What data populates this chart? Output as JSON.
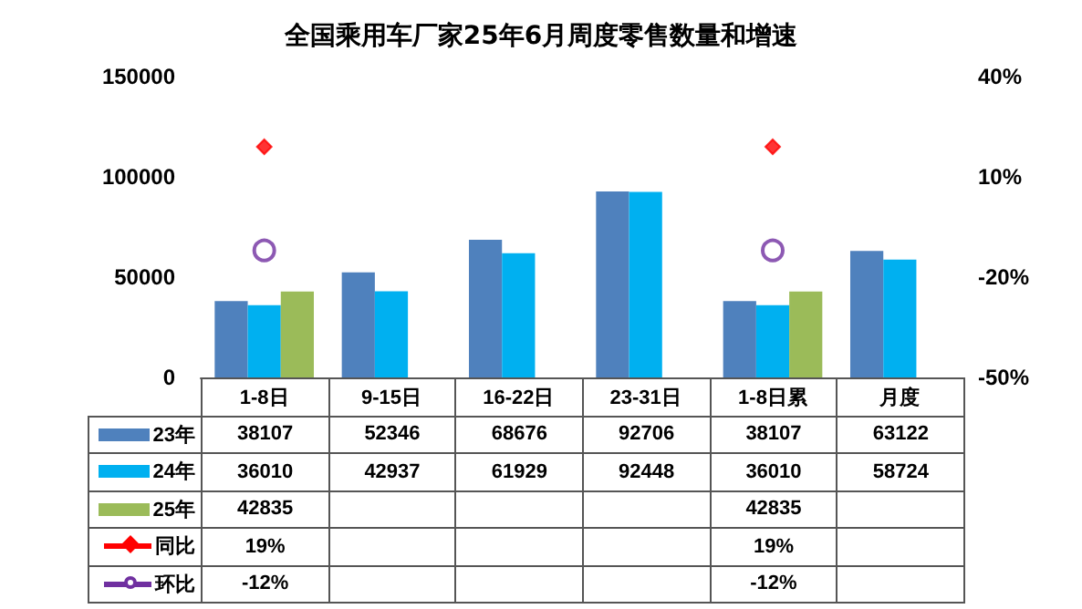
{
  "chart_data": {
    "type": "bar",
    "title": "全国乘用车厂家25年6月周度零售数量和增速",
    "categories": [
      "1-8日",
      "9-15日",
      "16-22日",
      "23-31日",
      "1-8日累",
      "月度"
    ],
    "series": [
      {
        "name": "23年",
        "color": "#4f81bd",
        "values": [
          38107,
          52346,
          68676,
          92706,
          38107,
          63122
        ],
        "value_labels": [
          "38107",
          "52346",
          "68676",
          "92706",
          "38107",
          "63122"
        ]
      },
      {
        "name": "24年",
        "color": "#00b0f0",
        "values": [
          36010,
          42937,
          61929,
          92448,
          36010,
          58724
        ],
        "value_labels": [
          "36010",
          "42937",
          "61929",
          "92448",
          "36010",
          "58724"
        ]
      },
      {
        "name": "25年",
        "color": "#9bbb59",
        "values": [
          42835,
          null,
          null,
          null,
          42835,
          null
        ],
        "value_labels": [
          "42835",
          null,
          null,
          null,
          "42835",
          null
        ]
      },
      {
        "name": "同比",
        "type": "scatter",
        "axis": "y2",
        "marker": "diamond",
        "color": "#ff0000",
        "values": [
          19,
          null,
          null,
          null,
          19,
          null
        ],
        "value_labels": [
          "19%",
          null,
          null,
          null,
          "19%",
          null
        ]
      },
      {
        "name": "环比",
        "type": "scatter",
        "axis": "y2",
        "marker": "circle",
        "color": "#7030a0",
        "values": [
          -12,
          null,
          null,
          null,
          -12,
          null
        ],
        "value_labels": [
          "-12%",
          null,
          null,
          null,
          "-12%",
          null
        ]
      }
    ],
    "ylim": [
      0,
      150000
    ],
    "yticks": [
      0,
      50000,
      100000,
      150000
    ],
    "y2lim": [
      -50,
      40
    ],
    "y2ticks": [
      {
        "value": -50,
        "label": "-50%"
      },
      {
        "value": -20,
        "label": "-20%"
      },
      {
        "value": 10,
        "label": "10%"
      },
      {
        "value": 40,
        "label": "40%"
      }
    ],
    "grid": false,
    "legend": "bottom"
  }
}
